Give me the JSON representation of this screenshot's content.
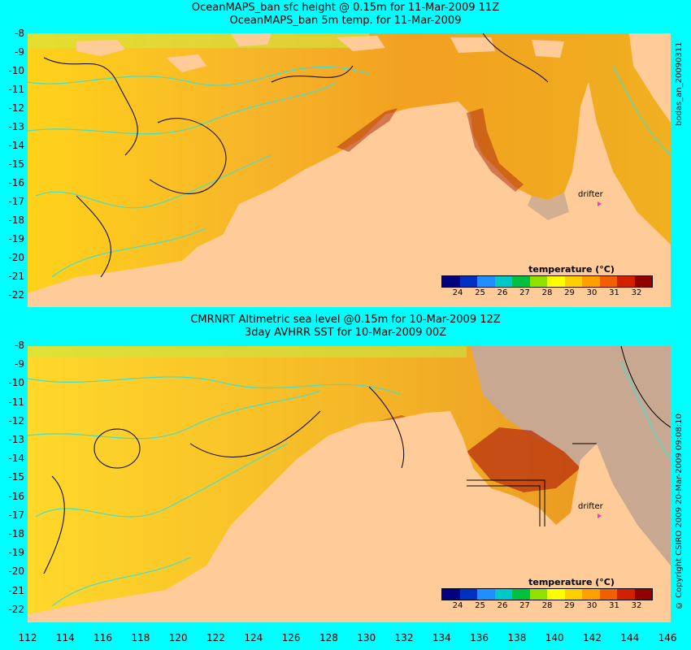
{
  "map": {
    "top_title_line1": "OceanMAPS_ban sfc height @ 0.15m for 11-Mar-2009 11Z",
    "top_title_line2": "OceanMAPS_ban 5m temp. for 11-Mar-2009",
    "bottom_title_line1": "CMRNRT Altimetric sea level  @0.15m  for 10-Mar-2009 12Z",
    "bottom_title_line2": "3day AVHRR SST for 10-Mar-2009 00Z",
    "top_side_label": "bodas_an_20090311",
    "bottom_side_label": "© Copyright CSIRO 2009  20-Mar-2009 09:08:10",
    "lat_labels": [
      "-8",
      "-9",
      "-10",
      "-11",
      "-12",
      "-13",
      "-14",
      "-15",
      "-16",
      "-17",
      "-18",
      "-19",
      "-20",
      "-21",
      "-22"
    ],
    "lon_labels": [
      "112",
      "114",
      "116",
      "118",
      "120",
      "122",
      "124",
      "126",
      "128",
      "130",
      "132",
      "134",
      "136",
      "138",
      "140",
      "142",
      "144",
      "146"
    ],
    "legend_title": "temperature (°C)",
    "legend_ticks": [
      "24",
      "25",
      "26",
      "27",
      "28",
      "29",
      "30",
      "31",
      "32"
    ],
    "legend_colors": [
      "#000080",
      "#0030c0",
      "#1f8fff",
      "#00c8c8",
      "#00c040",
      "#90e000",
      "#ffff00",
      "#ffd000",
      "#ffa000",
      "#f06000",
      "#d02000",
      "#900000"
    ],
    "drifter_label": "drifter",
    "colors": {
      "ocean_warm": "#f0b020",
      "land": "#ffcc99",
      "frame": "#00ffff",
      "contour_cyan": "#40e0d0"
    }
  }
}
